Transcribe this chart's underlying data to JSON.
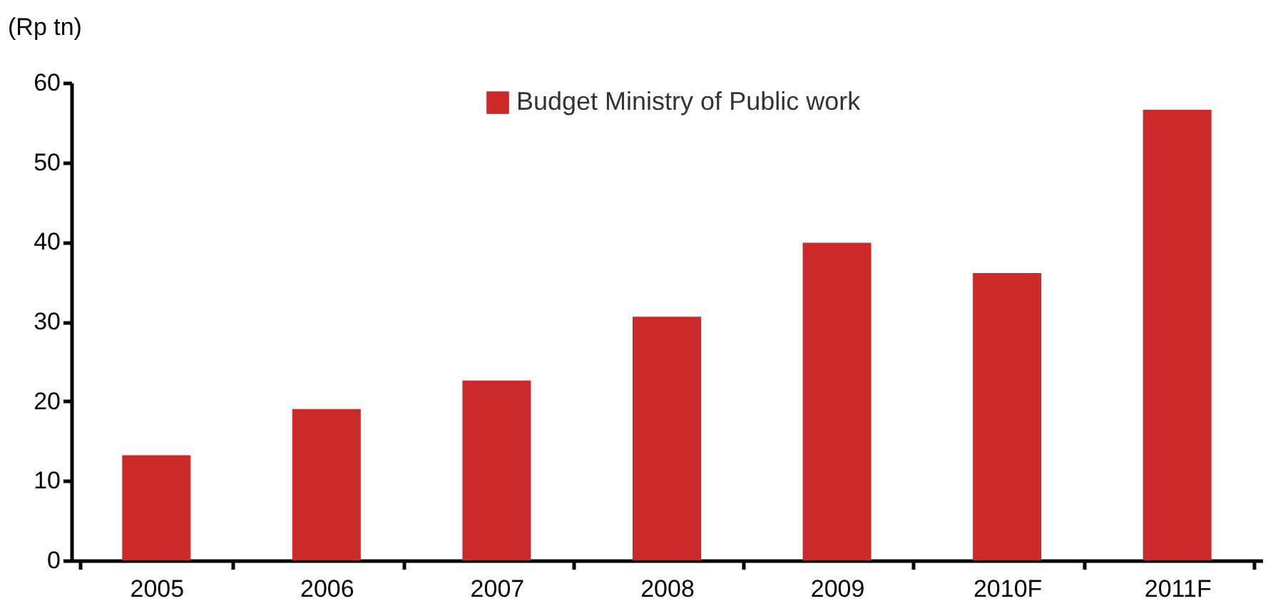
{
  "chart_data": {
    "type": "bar",
    "ylabel": "(Rp tn)",
    "categories": [
      "2005",
      "2006",
      "2007",
      "2008",
      "2009",
      "2010F",
      "2011F"
    ],
    "series": [
      {
        "name": "Budget Ministry of Public work",
        "color": "#cc292b",
        "values": [
          13.2,
          19.0,
          22.6,
          30.6,
          39.9,
          36.1,
          56.6
        ]
      }
    ],
    "ylim": [
      0,
      60
    ],
    "yticks": [
      0,
      10,
      20,
      30,
      40,
      50,
      60
    ],
    "grid": false,
    "legend": "top"
  }
}
